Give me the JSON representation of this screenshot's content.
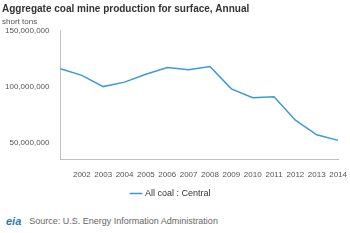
{
  "chart_data": {
    "type": "line",
    "title": "Aggregate coal mine production for surface, Annual",
    "subtitle": "short tons",
    "categories": [
      null,
      "2002",
      "2003",
      "2004",
      "2005",
      "2006",
      "2007",
      "2008",
      "2009",
      "2010",
      "2011",
      "2012",
      "2013",
      "2014"
    ],
    "series": [
      {
        "name": "All coal : Central",
        "color": "#3a9ad9",
        "values": [
          116000000,
          110000000,
          100000000,
          104000000,
          111000000,
          117000000,
          115000000,
          118000000,
          98000000,
          90000000,
          91000000,
          70000000,
          57000000,
          52000000
        ]
      }
    ],
    "ylim": [
      35000000,
      150000000
    ],
    "yticks": [
      {
        "value": 50000000,
        "label": "50,000,000"
      },
      {
        "value": 100000000,
        "label": "100,000,000"
      },
      {
        "value": 150000000,
        "label": "150,000,000"
      }
    ],
    "grid": false,
    "legend": "bottom",
    "source": "Source: U.S. Energy Information Administration",
    "logo": "eia"
  }
}
